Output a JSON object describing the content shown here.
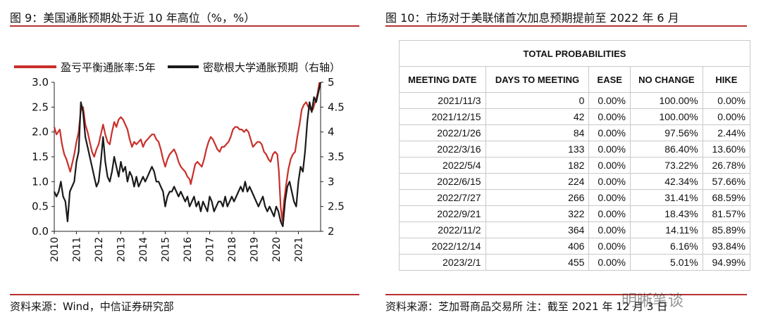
{
  "left": {
    "figure_title": "图 9：美国通胀预期处于近 10 年高位（%，%）",
    "source": "资料来源：Wind，中信证券研究部"
  },
  "right": {
    "figure_title": "图 10：市场对于美联储首次加息预期提前至 2022 年 6 月",
    "source": "资料来源：芝加哥商品交易所 注：截至 2021 年 12 月 3 日",
    "table_title": "TOTAL PROBABILITIES",
    "columns": [
      "MEETING DATE",
      "DAYS TO MEETING",
      "EASE",
      "NO CHANGE",
      "HIKE"
    ],
    "rows": [
      [
        "2021/11/3",
        "0",
        "0.00%",
        "100.00%",
        "0.00%"
      ],
      [
        "2021/12/15",
        "42",
        "0.00%",
        "100.00%",
        "0.00%"
      ],
      [
        "2022/1/26",
        "84",
        "0.00%",
        "97.56%",
        "2.44%"
      ],
      [
        "2022/3/16",
        "133",
        "0.00%",
        "86.40%",
        "13.60%"
      ],
      [
        "2022/5/4",
        "182",
        "0.00%",
        "73.22%",
        "26.78%"
      ],
      [
        "2022/6/15",
        "224",
        "0.00%",
        "42.34%",
        "57.66%"
      ],
      [
        "2022/7/27",
        "266",
        "0.00%",
        "31.41%",
        "68.59%"
      ],
      [
        "2022/9/21",
        "322",
        "0.00%",
        "18.43%",
        "81.57%"
      ],
      [
        "2022/11/2",
        "364",
        "0.00%",
        "14.11%",
        "85.89%"
      ],
      [
        "2022/12/14",
        "406",
        "0.00%",
        "6.16%",
        "93.84%"
      ],
      [
        "2023/2/1",
        "455",
        "0.00%",
        "5.01%",
        "94.99%"
      ]
    ]
  },
  "watermark": "明晰笔谈",
  "colors": {
    "accent": "#b8312f",
    "red_series": "#c8302a",
    "black_series": "#1a1a1a"
  },
  "chart_data": [
    {
      "type": "line",
      "title": "",
      "xlabel": "",
      "ylabel": "",
      "y2label": "",
      "x_ticks": [
        "2010",
        "2011",
        "2012",
        "2013",
        "2014",
        "2015",
        "2016",
        "2017",
        "2018",
        "2019",
        "2020",
        "2021"
      ],
      "ylim": [
        0,
        3.0
      ],
      "y_ticks": [
        "0.0",
        "0.5",
        "1.0",
        "1.5",
        "2.0",
        "2.5",
        "3.0"
      ],
      "y2lim": [
        2,
        5
      ],
      "y2_ticks": [
        "2",
        "2.5",
        "3",
        "3.5",
        "4",
        "4.5",
        "5"
      ],
      "legend_position": "top",
      "grid": false,
      "series": [
        {
          "name": "盈亏平衡通胀率:5年",
          "axis": "left",
          "color": "#c8302a",
          "points": [
            [
              2010.0,
              2.1
            ],
            [
              2010.1,
              1.95
            ],
            [
              2010.25,
              2.05
            ],
            [
              2010.35,
              1.75
            ],
            [
              2010.45,
              1.55
            ],
            [
              2010.55,
              1.45
            ],
            [
              2010.65,
              1.3
            ],
            [
              2010.72,
              1.2
            ],
            [
              2010.8,
              1.35
            ],
            [
              2010.9,
              1.55
            ],
            [
              2011.0,
              1.8
            ],
            [
              2011.1,
              2.0
            ],
            [
              2011.2,
              2.45
            ],
            [
              2011.3,
              2.5
            ],
            [
              2011.4,
              2.15
            ],
            [
              2011.5,
              2.0
            ],
            [
              2011.6,
              1.8
            ],
            [
              2011.7,
              1.6
            ],
            [
              2011.8,
              1.5
            ],
            [
              2011.9,
              1.65
            ],
            [
              2012.0,
              1.75
            ],
            [
              2012.1,
              1.95
            ],
            [
              2012.2,
              2.15
            ],
            [
              2012.3,
              1.95
            ],
            [
              2012.4,
              1.8
            ],
            [
              2012.5,
              1.75
            ],
            [
              2012.6,
              2.0
            ],
            [
              2012.7,
              2.2
            ],
            [
              2012.8,
              2.1
            ],
            [
              2012.9,
              2.25
            ],
            [
              2013.0,
              2.3
            ],
            [
              2013.1,
              2.25
            ],
            [
              2013.2,
              2.15
            ],
            [
              2013.3,
              2.05
            ],
            [
              2013.4,
              1.85
            ],
            [
              2013.5,
              1.7
            ],
            [
              2013.6,
              1.8
            ],
            [
              2013.7,
              1.75
            ],
            [
              2013.8,
              1.8
            ],
            [
              2013.9,
              1.85
            ],
            [
              2014.0,
              1.7
            ],
            [
              2014.1,
              1.8
            ],
            [
              2014.2,
              1.85
            ],
            [
              2014.3,
              1.9
            ],
            [
              2014.4,
              1.95
            ],
            [
              2014.5,
              1.95
            ],
            [
              2014.6,
              1.85
            ],
            [
              2014.7,
              1.8
            ],
            [
              2014.8,
              1.65
            ],
            [
              2014.9,
              1.45
            ],
            [
              2015.0,
              1.3
            ],
            [
              2015.1,
              1.45
            ],
            [
              2015.2,
              1.55
            ],
            [
              2015.3,
              1.6
            ],
            [
              2015.4,
              1.65
            ],
            [
              2015.5,
              1.55
            ],
            [
              2015.6,
              1.4
            ],
            [
              2015.7,
              1.3
            ],
            [
              2015.8,
              1.25
            ],
            [
              2015.9,
              1.2
            ],
            [
              2016.0,
              1.1
            ],
            [
              2016.1,
              1.05
            ],
            [
              2016.15,
              0.95
            ],
            [
              2016.25,
              1.15
            ],
            [
              2016.35,
              1.35
            ],
            [
              2016.45,
              1.4
            ],
            [
              2016.55,
              1.35
            ],
            [
              2016.65,
              1.3
            ],
            [
              2016.75,
              1.45
            ],
            [
              2016.85,
              1.65
            ],
            [
              2016.95,
              1.8
            ],
            [
              2017.05,
              1.9
            ],
            [
              2017.15,
              1.85
            ],
            [
              2017.25,
              1.75
            ],
            [
              2017.35,
              1.65
            ],
            [
              2017.45,
              1.6
            ],
            [
              2017.55,
              1.7
            ],
            [
              2017.65,
              1.7
            ],
            [
              2017.75,
              1.75
            ],
            [
              2017.85,
              1.8
            ],
            [
              2017.95,
              1.9
            ],
            [
              2018.05,
              2.05
            ],
            [
              2018.15,
              2.1
            ],
            [
              2018.25,
              2.1
            ],
            [
              2018.35,
              2.05
            ],
            [
              2018.45,
              2.05
            ],
            [
              2018.55,
              2.0
            ],
            [
              2018.65,
              2.05
            ],
            [
              2018.75,
              2.0
            ],
            [
              2018.85,
              1.85
            ],
            [
              2018.95,
              1.7
            ],
            [
              2019.05,
              1.75
            ],
            [
              2019.15,
              1.8
            ],
            [
              2019.25,
              1.8
            ],
            [
              2019.35,
              1.75
            ],
            [
              2019.45,
              1.6
            ],
            [
              2019.55,
              1.55
            ],
            [
              2019.65,
              1.45
            ],
            [
              2019.75,
              1.4
            ],
            [
              2019.85,
              1.55
            ],
            [
              2019.95,
              1.6
            ],
            [
              2020.05,
              1.55
            ],
            [
              2020.12,
              1.2
            ],
            [
              2020.2,
              0.5
            ],
            [
              2020.28,
              0.2
            ],
            [
              2020.35,
              0.6
            ],
            [
              2020.45,
              0.95
            ],
            [
              2020.55,
              1.25
            ],
            [
              2020.65,
              1.45
            ],
            [
              2020.75,
              1.55
            ],
            [
              2020.85,
              1.6
            ],
            [
              2020.95,
              1.9
            ],
            [
              2021.05,
              2.15
            ],
            [
              2021.15,
              2.45
            ],
            [
              2021.25,
              2.55
            ],
            [
              2021.35,
              2.6
            ],
            [
              2021.45,
              2.5
            ],
            [
              2021.55,
              2.45
            ],
            [
              2021.65,
              2.45
            ],
            [
              2021.75,
              2.6
            ],
            [
              2021.85,
              2.75
            ],
            [
              2021.95,
              3.0
            ]
          ]
        },
        {
          "name": "密歇根大学通胀预期（右轴）",
          "axis": "right",
          "color": "#1a1a1a",
          "points": [
            [
              2010.0,
              2.8
            ],
            [
              2010.1,
              2.7
            ],
            [
              2010.2,
              2.8
            ],
            [
              2010.3,
              3.0
            ],
            [
              2010.4,
              2.7
            ],
            [
              2010.5,
              2.6
            ],
            [
              2010.6,
              2.2
            ],
            [
              2010.7,
              2.8
            ],
            [
              2010.8,
              2.9
            ],
            [
              2010.9,
              3.0
            ],
            [
              2011.0,
              3.4
            ],
            [
              2011.1,
              3.6
            ],
            [
              2011.2,
              4.6
            ],
            [
              2011.3,
              4.4
            ],
            [
              2011.4,
              3.9
            ],
            [
              2011.5,
              3.7
            ],
            [
              2011.6,
              3.5
            ],
            [
              2011.7,
              3.3
            ],
            [
              2011.8,
              3.1
            ],
            [
              2011.9,
              2.9
            ],
            [
              2012.0,
              3.0
            ],
            [
              2012.1,
              3.4
            ],
            [
              2012.2,
              3.9
            ],
            [
              2012.3,
              3.4
            ],
            [
              2012.4,
              3.1
            ],
            [
              2012.5,
              3.0
            ],
            [
              2012.6,
              3.2
            ],
            [
              2012.7,
              3.5
            ],
            [
              2012.8,
              3.3
            ],
            [
              2012.9,
              3.1
            ],
            [
              2013.0,
              3.4
            ],
            [
              2013.1,
              3.2
            ],
            [
              2013.2,
              3.3
            ],
            [
              2013.3,
              3.0
            ],
            [
              2013.4,
              3.2
            ],
            [
              2013.5,
              3.1
            ],
            [
              2013.6,
              2.9
            ],
            [
              2013.7,
              3.1
            ],
            [
              2013.8,
              2.9
            ],
            [
              2013.9,
              3.0
            ],
            [
              2014.0,
              3.1
            ],
            [
              2014.1,
              3.0
            ],
            [
              2014.2,
              3.1
            ],
            [
              2014.3,
              3.2
            ],
            [
              2014.4,
              3.3
            ],
            [
              2014.5,
              3.2
            ],
            [
              2014.6,
              3.0
            ],
            [
              2014.7,
              3.0
            ],
            [
              2014.8,
              2.9
            ],
            [
              2014.9,
              2.8
            ],
            [
              2015.0,
              2.5
            ],
            [
              2015.1,
              2.7
            ],
            [
              2015.2,
              2.8
            ],
            [
              2015.3,
              2.8
            ],
            [
              2015.4,
              2.9
            ],
            [
              2015.5,
              2.8
            ],
            [
              2015.6,
              2.7
            ],
            [
              2015.7,
              2.8
            ],
            [
              2015.8,
              2.7
            ],
            [
              2015.9,
              2.6
            ],
            [
              2016.0,
              2.7
            ],
            [
              2016.1,
              2.5
            ],
            [
              2016.2,
              2.6
            ],
            [
              2016.3,
              2.7
            ],
            [
              2016.4,
              2.5
            ],
            [
              2016.5,
              2.6
            ],
            [
              2016.6,
              2.4
            ],
            [
              2016.7,
              2.6
            ],
            [
              2016.8,
              2.5
            ],
            [
              2016.9,
              2.4
            ],
            [
              2017.0,
              2.7
            ],
            [
              2017.1,
              2.6
            ],
            [
              2017.2,
              2.4
            ],
            [
              2017.3,
              2.5
            ],
            [
              2017.4,
              2.6
            ],
            [
              2017.5,
              2.6
            ],
            [
              2017.6,
              2.5
            ],
            [
              2017.7,
              2.7
            ],
            [
              2017.8,
              2.5
            ],
            [
              2017.9,
              2.6
            ],
            [
              2018.0,
              2.7
            ],
            [
              2018.1,
              2.6
            ],
            [
              2018.2,
              2.7
            ],
            [
              2018.3,
              2.8
            ],
            [
              2018.4,
              2.9
            ],
            [
              2018.5,
              2.8
            ],
            [
              2018.6,
              3.0
            ],
            [
              2018.7,
              2.8
            ],
            [
              2018.8,
              2.9
            ],
            [
              2018.9,
              2.8
            ],
            [
              2019.0,
              2.7
            ],
            [
              2019.1,
              2.6
            ],
            [
              2019.2,
              2.5
            ],
            [
              2019.3,
              2.6
            ],
            [
              2019.4,
              2.7
            ],
            [
              2019.5,
              2.5
            ],
            [
              2019.6,
              2.4
            ],
            [
              2019.7,
              2.5
            ],
            [
              2019.8,
              2.4
            ],
            [
              2019.9,
              2.3
            ],
            [
              2020.0,
              2.5
            ],
            [
              2020.1,
              2.4
            ],
            [
              2020.2,
              2.2
            ],
            [
              2020.3,
              2.1
            ],
            [
              2020.4,
              2.6
            ],
            [
              2020.5,
              2.9
            ],
            [
              2020.6,
              3.0
            ],
            [
              2020.7,
              2.8
            ],
            [
              2020.8,
              2.6
            ],
            [
              2020.9,
              2.5
            ],
            [
              2021.0,
              3.0
            ],
            [
              2021.1,
              3.3
            ],
            [
              2021.2,
              3.2
            ],
            [
              2021.3,
              3.6
            ],
            [
              2021.4,
              4.2
            ],
            [
              2021.5,
              4.6
            ],
            [
              2021.6,
              4.4
            ],
            [
              2021.7,
              4.7
            ],
            [
              2021.8,
              4.6
            ],
            [
              2021.9,
              4.8
            ],
            [
              2022.0,
              5.0
            ]
          ]
        }
      ]
    }
  ]
}
